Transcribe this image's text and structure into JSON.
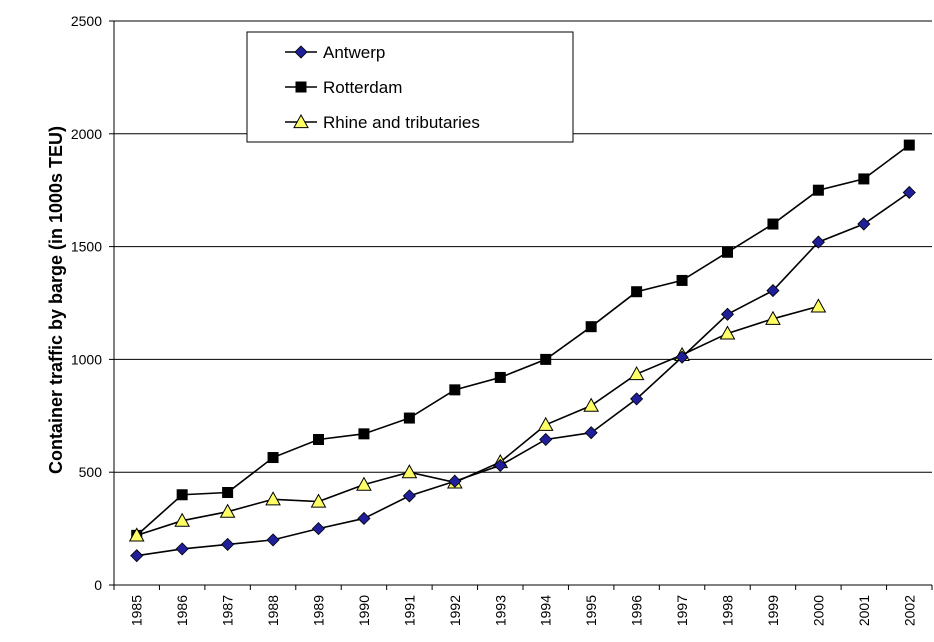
{
  "chart_data": {
    "type": "line",
    "title": "",
    "xlabel": "",
    "ylabel": "Container traffic by barge (in 1000s TEU)",
    "ylim": [
      0,
      2500
    ],
    "yticks": [
      0,
      500,
      1000,
      1500,
      2000,
      2500
    ],
    "grid": "horizontal",
    "legend_position": "top-left",
    "categories": [
      "1985",
      "1986",
      "1987",
      "1988",
      "1989",
      "1990",
      "1991",
      "1992",
      "1993",
      "1994",
      "1995",
      "1996",
      "1997",
      "1998",
      "1999",
      "2000",
      "2001",
      "2002"
    ],
    "series": [
      {
        "name": "Antwerp",
        "marker": "diamond",
        "color": "#1f1f99",
        "values": [
          130,
          160,
          180,
          200,
          250,
          295,
          395,
          460,
          530,
          645,
          675,
          825,
          1010,
          1200,
          1305,
          1520,
          1600,
          1740
        ]
      },
      {
        "name": "Rotterdam",
        "marker": "square",
        "color": "#000000",
        "values": [
          220,
          400,
          410,
          565,
          645,
          670,
          740,
          865,
          920,
          1000,
          1145,
          1300,
          1350,
          1475,
          1600,
          1750,
          1800,
          1950
        ]
      },
      {
        "name": "Rhine and tributaries",
        "marker": "triangle",
        "color": "#ffff66",
        "values": [
          220,
          285,
          325,
          380,
          370,
          445,
          500,
          455,
          545,
          710,
          795,
          935,
          1020,
          1115,
          1180,
          1235,
          null,
          null
        ]
      }
    ]
  }
}
